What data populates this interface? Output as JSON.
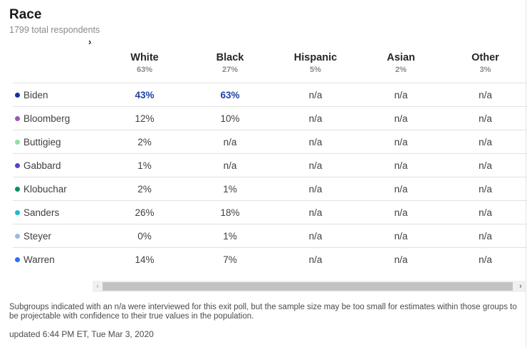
{
  "header": {
    "title": "Race",
    "subtitle": "1799 total respondents",
    "scroll_chevron": "›"
  },
  "columns": [
    {
      "name": "White",
      "pct": "63%"
    },
    {
      "name": "Black",
      "pct": "27%"
    },
    {
      "name": "Hispanic",
      "pct": "5%"
    },
    {
      "name": "Asian",
      "pct": "2%"
    },
    {
      "name": "Other",
      "pct": "3%"
    }
  ],
  "rows": [
    {
      "name": "Biden",
      "color": "#1a2fa3",
      "values": [
        "43%",
        "63%",
        "n/a",
        "n/a",
        "n/a"
      ],
      "lead": [
        true,
        true,
        false,
        false,
        false
      ]
    },
    {
      "name": "Bloomberg",
      "color": "#9b59b6",
      "values": [
        "12%",
        "10%",
        "n/a",
        "n/a",
        "n/a"
      ],
      "lead": [
        false,
        false,
        false,
        false,
        false
      ]
    },
    {
      "name": "Buttigieg",
      "color": "#8fe0a8",
      "values": [
        "2%",
        "n/a",
        "n/a",
        "n/a",
        "n/a"
      ],
      "lead": [
        false,
        false,
        false,
        false,
        false
      ]
    },
    {
      "name": "Gabbard",
      "color": "#5b3fd1",
      "values": [
        "1%",
        "n/a",
        "n/a",
        "n/a",
        "n/a"
      ],
      "lead": [
        false,
        false,
        false,
        false,
        false
      ]
    },
    {
      "name": "Klobuchar",
      "color": "#0e8c6a",
      "values": [
        "2%",
        "1%",
        "n/a",
        "n/a",
        "n/a"
      ],
      "lead": [
        false,
        false,
        false,
        false,
        false
      ]
    },
    {
      "name": "Sanders",
      "color": "#1fb8d6",
      "values": [
        "26%",
        "18%",
        "n/a",
        "n/a",
        "n/a"
      ],
      "lead": [
        false,
        false,
        false,
        false,
        false
      ]
    },
    {
      "name": "Steyer",
      "color": "#9bb8e6",
      "values": [
        "0%",
        "1%",
        "n/a",
        "n/a",
        "n/a"
      ],
      "lead": [
        false,
        false,
        false,
        false,
        false
      ]
    },
    {
      "name": "Warren",
      "color": "#2e6ef0",
      "values": [
        "14%",
        "7%",
        "n/a",
        "n/a",
        "n/a"
      ],
      "lead": [
        false,
        false,
        false,
        false,
        false
      ]
    }
  ],
  "scrollbar": {
    "left_arrow": "‹",
    "right_arrow": "›"
  },
  "footer": {
    "note": "Subgroups indicated with an n/a were interviewed for this exit poll, but the sample size may be too small for estimates within those groups to be projectable with confidence to their true values in the population.",
    "updated": "updated 6:44 PM ET, Tue Mar 3, 2020"
  }
}
